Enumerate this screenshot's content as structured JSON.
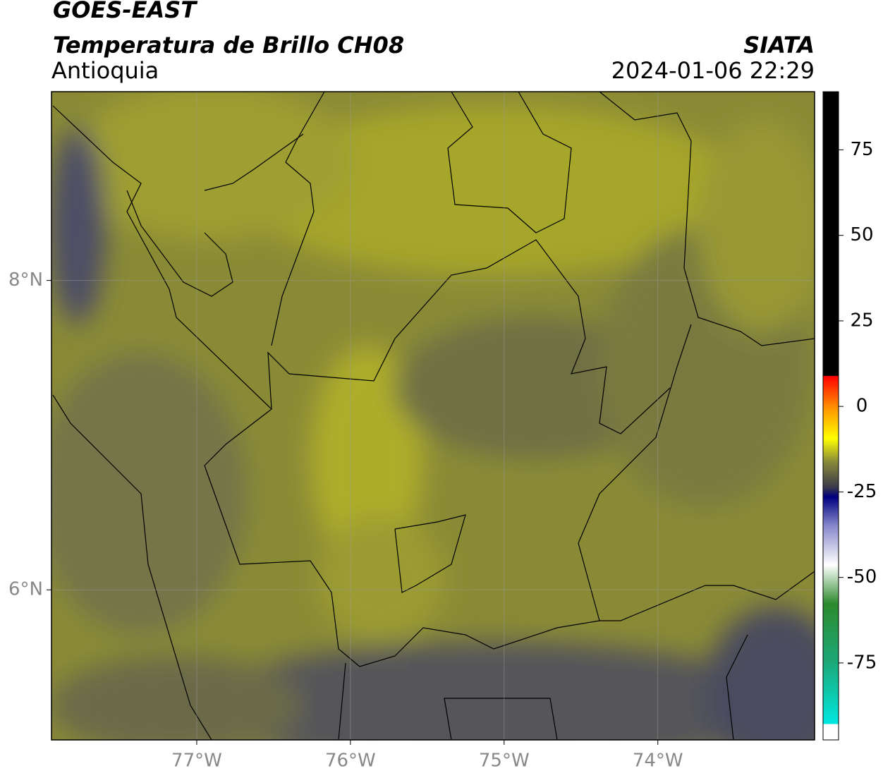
{
  "header": {
    "title": "GOES-EAST",
    "subtitle": "Temperatura de Brillo CH08",
    "region": "Antioquia",
    "source": "SIATA",
    "timestamp": "2024-01-06 22:29"
  },
  "map": {
    "xlim": [
      -77.945,
      -72.98
    ],
    "ylim": [
      5.03,
      9.22
    ],
    "xticks": [
      {
        "value": -77,
        "label": "77°W"
      },
      {
        "value": -76,
        "label": "76°W"
      },
      {
        "value": -75,
        "label": "75°W"
      },
      {
        "value": -74,
        "label": "74°W"
      }
    ],
    "yticks": [
      {
        "value": 8,
        "label": "8°N"
      },
      {
        "value": 6,
        "label": "6°N"
      }
    ]
  },
  "colorbar": {
    "lim": [
      -97.5,
      92
    ],
    "ticks": [
      75,
      50,
      25,
      0,
      -25,
      -50,
      -75
    ]
  }
}
